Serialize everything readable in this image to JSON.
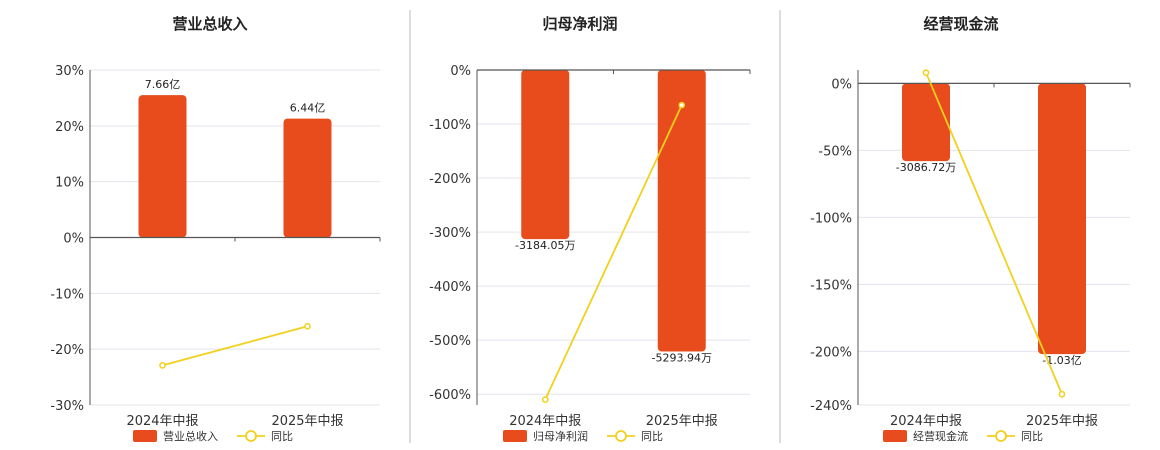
{
  "colors": {
    "bar": "#E84B1C",
    "line": "#F2D01E",
    "grid": "#E3E3EC",
    "axis": "#555555",
    "divider": "#BBBBBB"
  },
  "chart_data": [
    {
      "type": "bar",
      "title": "营业总收入",
      "categories": [
        "2024年中报",
        "2025年中报"
      ],
      "ylim": [
        -30,
        30
      ],
      "yticks": [
        30,
        20,
        10,
        0,
        -10,
        -20,
        -30
      ],
      "ytick_labels": [
        "30%",
        "20%",
        "10%",
        "0%",
        "-10%",
        "-20%",
        "-30%"
      ],
      "grid": true,
      "legend_position": "bottom",
      "series": [
        {
          "name": "营业总收入",
          "kind": "bar",
          "values": [
            25.5,
            21.3
          ],
          "labels": [
            "7.66亿",
            "6.44亿"
          ]
        },
        {
          "name": "同比",
          "kind": "line",
          "values": [
            -22.9,
            -15.9
          ]
        }
      ]
    },
    {
      "type": "bar",
      "title": "归母净利润",
      "categories": [
        "2024年中报",
        "2025年中报"
      ],
      "ylim": [
        -620,
        0
      ],
      "yticks": [
        0,
        -100,
        -200,
        -300,
        -400,
        -500,
        -600
      ],
      "ytick_labels": [
        "0%",
        "-100%",
        "-200%",
        "-300%",
        "-400%",
        "-500%",
        "-600%"
      ],
      "grid": true,
      "legend_position": "bottom",
      "series": [
        {
          "name": "归母净利润",
          "kind": "bar",
          "values": [
            -313,
            -521
          ],
          "labels": [
            "-3184.05万",
            "-5293.94万"
          ]
        },
        {
          "name": "同比",
          "kind": "line",
          "values": [
            -610,
            -65
          ]
        }
      ]
    },
    {
      "type": "bar",
      "title": "经营现金流",
      "categories": [
        "2024年中报",
        "2025年中报"
      ],
      "ylim": [
        -240,
        10
      ],
      "yticks": [
        0,
        -50,
        -100,
        -150,
        -200,
        -240
      ],
      "ytick_labels": [
        "0%",
        "-50%",
        "-100%",
        "-150%",
        "-200%",
        "-240%"
      ],
      "grid": true,
      "legend_position": "bottom",
      "series": [
        {
          "name": "经营现金流",
          "kind": "bar",
          "values": [
            -58,
            -202
          ],
          "labels": [
            "-3086.72万",
            "-1.03亿"
          ]
        },
        {
          "name": "同比",
          "kind": "line",
          "values": [
            8,
            -232
          ]
        }
      ]
    }
  ]
}
